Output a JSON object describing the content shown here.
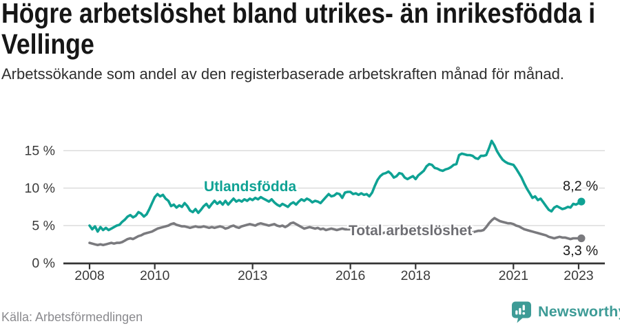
{
  "header": {
    "title": "Högre arbetslöshet bland utrikes- än inrikesfödda i Vellinge",
    "subtitle": "Arbetssökande som andel av den registerbaserade arbetskraften månad för månad."
  },
  "chart_data": {
    "type": "line",
    "title": "Högre arbetslöshet bland utrikes- än inrikesfödda i Vellinge",
    "subtitle": "Arbetssökande som andel av den registerbaserade arbetskraften månad för månad.",
    "x": {
      "start_year": 2008,
      "interval": "monthly",
      "end": "2023-02",
      "tick_years": [
        2008,
        2010,
        2013,
        2016,
        2018,
        2021,
        2023
      ],
      "tick_labels": [
        "2008",
        "2010",
        "2013",
        "2016",
        "2018",
        "2021",
        "2023"
      ]
    },
    "y": {
      "tick_values": [
        0,
        5,
        10,
        15
      ],
      "tick_labels": [
        "0 %",
        "5 %",
        "10 %",
        "15 %"
      ],
      "range": [
        0,
        17
      ],
      "grid": "horizontal"
    },
    "legend_position": "inline-labels",
    "series": [
      {
        "name": "Utlandsfödda",
        "color": "#0FA294",
        "end_label": "8,2 %",
        "end_value": 8.2,
        "values": [
          5.0,
          4.5,
          4.9,
          4.2,
          4.8,
          4.4,
          4.7,
          4.4,
          4.6,
          4.8,
          5.0,
          5.1,
          5.5,
          5.8,
          6.2,
          6.4,
          6.1,
          6.3,
          6.8,
          6.6,
          6.2,
          6.5,
          7.2,
          8.0,
          8.8,
          9.2,
          8.9,
          9.1,
          8.6,
          8.3,
          7.6,
          7.8,
          7.4,
          7.7,
          7.5,
          8.0,
          7.6,
          7.0,
          6.8,
          7.2,
          6.7,
          7.1,
          7.6,
          7.9,
          7.4,
          7.9,
          8.3,
          7.9,
          8.2,
          7.8,
          8.3,
          7.8,
          8.2,
          8.6,
          8.2,
          8.4,
          8.2,
          8.5,
          8.3,
          8.6,
          8.4,
          8.7,
          8.5,
          8.8,
          8.6,
          8.4,
          8.2,
          8.5,
          8.1,
          7.8,
          7.6,
          7.9,
          7.7,
          7.5,
          7.9,
          8.1,
          7.8,
          8.2,
          8.5,
          8.3,
          8.6,
          8.4,
          8.1,
          8.3,
          8.2,
          8.0,
          8.4,
          8.8,
          9.2,
          8.9,
          9.0,
          9.3,
          9.2,
          8.7,
          9.4,
          9.5,
          9.5,
          9.2,
          9.3,
          9.1,
          9.3,
          9.1,
          9.2,
          8.9,
          9.4,
          10.3,
          11.1,
          11.6,
          11.9,
          12.0,
          12.2,
          11.9,
          11.4,
          11.6,
          12.0,
          11.9,
          11.4,
          11.2,
          11.4,
          11.6,
          11.2,
          11.7,
          12.0,
          12.3,
          12.9,
          13.2,
          13.1,
          12.7,
          12.6,
          12.4,
          12.3,
          12.5,
          12.6,
          12.8,
          13.1,
          13.2,
          14.4,
          14.6,
          14.5,
          14.4,
          14.4,
          14.3,
          14.0,
          13.9,
          14.3,
          14.3,
          14.4,
          15.3,
          16.3,
          15.7,
          14.9,
          14.3,
          13.8,
          13.5,
          13.3,
          13.2,
          13.1,
          12.6,
          12.0,
          11.4,
          10.6,
          9.9,
          9.3,
          8.7,
          8.9,
          8.4,
          8.6,
          8.1,
          7.6,
          7.1,
          6.9,
          7.4,
          7.6,
          7.4,
          7.2,
          7.3,
          7.5,
          7.4,
          7.9,
          7.8,
          8.0,
          8.2
        ]
      },
      {
        "name": "Total arbetslöshet",
        "color": "#7A7A7E",
        "label_color": "#6E6E73",
        "end_label": "3,3 %",
        "end_value": 3.3,
        "values": [
          2.7,
          2.6,
          2.5,
          2.4,
          2.5,
          2.4,
          2.5,
          2.6,
          2.7,
          2.6,
          2.7,
          2.7,
          2.8,
          3.0,
          3.2,
          3.3,
          3.2,
          3.4,
          3.6,
          3.7,
          3.9,
          4.0,
          4.1,
          4.2,
          4.4,
          4.6,
          4.7,
          4.8,
          4.9,
          5.0,
          5.2,
          5.3,
          5.1,
          5.0,
          4.9,
          4.9,
          4.8,
          4.7,
          4.8,
          4.9,
          4.8,
          4.8,
          4.9,
          4.8,
          4.7,
          4.8,
          4.7,
          4.8,
          4.9,
          4.8,
          4.6,
          4.7,
          4.9,
          5.0,
          4.8,
          4.7,
          4.9,
          5.0,
          5.1,
          5.2,
          5.1,
          5.0,
          5.2,
          5.3,
          5.2,
          5.1,
          5.0,
          5.1,
          5.2,
          5.0,
          4.9,
          5.0,
          4.8,
          5.0,
          5.3,
          5.4,
          5.2,
          5.0,
          4.8,
          4.6,
          4.7,
          4.8,
          4.7,
          4.6,
          4.7,
          4.5,
          4.6,
          4.4,
          4.5,
          4.6,
          4.5,
          4.4,
          4.5,
          4.6,
          4.5,
          4.5,
          4.5,
          4.4,
          4.5,
          4.4,
          4.3,
          4.4,
          4.3,
          4.2,
          4.2,
          4.1,
          4.1,
          4.0,
          4.0,
          4.1,
          4.0,
          3.9,
          4.0,
          3.9,
          3.8,
          3.9,
          3.8,
          3.9,
          3.8,
          3.9,
          3.8,
          3.9,
          3.8,
          3.9,
          4.0,
          3.9,
          3.8,
          3.9,
          3.8,
          3.9,
          4.0,
          3.9,
          4.0,
          3.9,
          4.0,
          4.1,
          4.0,
          4.1,
          4.2,
          4.1,
          4.2,
          4.1,
          4.2,
          4.3,
          4.3,
          4.4,
          4.8,
          5.3,
          5.7,
          6.0,
          5.8,
          5.6,
          5.5,
          5.4,
          5.3,
          5.3,
          5.2,
          5.0,
          4.9,
          4.7,
          4.5,
          4.4,
          4.3,
          4.2,
          4.1,
          4.0,
          3.9,
          3.8,
          3.7,
          3.5,
          3.4,
          3.3,
          3.4,
          3.5,
          3.4,
          3.4,
          3.3,
          3.2,
          3.3,
          3.3,
          3.3,
          3.3
        ]
      }
    ]
  },
  "footer": {
    "source": "Källa: Arbetsförmedlingen",
    "brand": "Newsworthy",
    "brand_color": "#3D9B96"
  }
}
